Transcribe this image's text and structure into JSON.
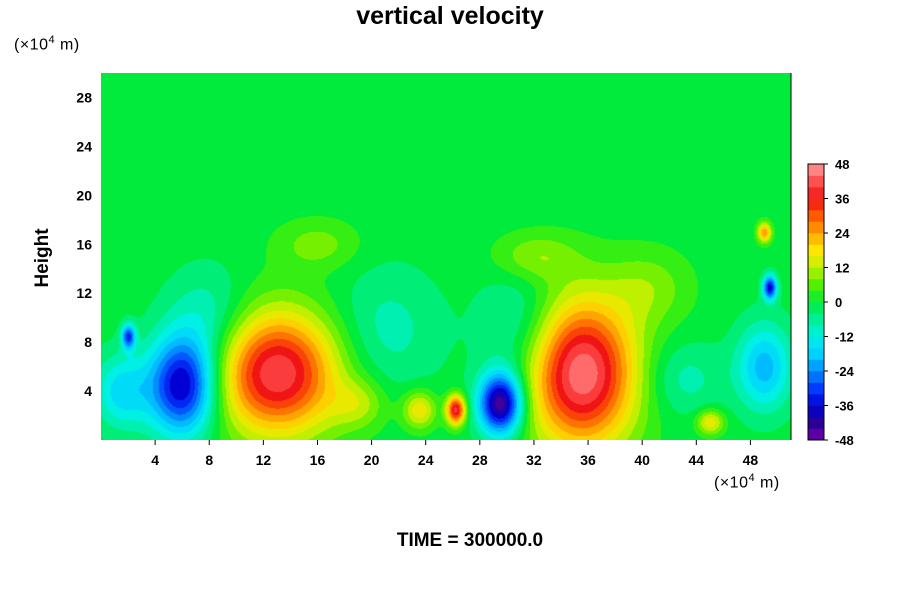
{
  "chart_data": {
    "type": "heatmap",
    "title": "vertical velocity",
    "ylabel": "Height",
    "xunit": {
      "prefix": "(×10",
      "exp": "4",
      "suffix": " m)"
    },
    "yunit": {
      "prefix": "(×10",
      "exp": "4",
      "suffix": " m)"
    },
    "xlim": [
      0,
      51
    ],
    "ylim": [
      0,
      30
    ],
    "xticks": [
      4,
      8,
      12,
      16,
      20,
      24,
      28,
      32,
      36,
      40,
      44,
      48
    ],
    "yticks": [
      4,
      8,
      12,
      16,
      20,
      24,
      28
    ],
    "colorbar": {
      "min": -48,
      "max": 48,
      "step": 4,
      "labels": [
        48,
        36,
        24,
        12,
        0,
        -12,
        -24,
        -36,
        -48
      ]
    },
    "background_value": 0,
    "features": [
      {
        "x": 13,
        "y": 5.5,
        "value": 42,
        "sx": 4.5,
        "sy": 5
      },
      {
        "x": 35.5,
        "y": 5.5,
        "value": 46,
        "sx": 4,
        "sy": 6
      },
      {
        "x": 26.2,
        "y": 2.5,
        "value": 40,
        "sx": 0.7,
        "sy": 1.2
      },
      {
        "x": 6,
        "y": 4.5,
        "value": -40,
        "sx": 2.5,
        "sy": 4
      },
      {
        "x": 29.5,
        "y": 3,
        "value": -46,
        "sx": 1.6,
        "sy": 2.5
      },
      {
        "x": 49,
        "y": 6,
        "value": -20,
        "sx": 2,
        "sy": 3.5
      },
      {
        "x": 49.4,
        "y": 12.5,
        "value": -36,
        "sx": 0.5,
        "sy": 1
      },
      {
        "x": 49,
        "y": 17,
        "value": 26,
        "sx": 0.5,
        "sy": 0.8
      },
      {
        "x": 1.5,
        "y": 4,
        "value": -16,
        "sx": 2,
        "sy": 3
      },
      {
        "x": 2,
        "y": 8.5,
        "value": -30,
        "sx": 0.5,
        "sy": 1
      },
      {
        "x": 8,
        "y": 10,
        "value": -10,
        "sx": 3,
        "sy": 4
      },
      {
        "x": 21,
        "y": 9,
        "value": -8,
        "sx": 4,
        "sy": 5
      },
      {
        "x": 31,
        "y": 9,
        "value": -10,
        "sx": 3,
        "sy": 5
      },
      {
        "x": 43,
        "y": 5,
        "value": -8,
        "sx": 3,
        "sy": 3
      },
      {
        "x": 23.5,
        "y": 2.5,
        "value": 18,
        "sx": 1.2,
        "sy": 1.5
      },
      {
        "x": 45,
        "y": 1.5,
        "value": 18,
        "sx": 1,
        "sy": 1
      },
      {
        "x": 19,
        "y": 3,
        "value": 10,
        "sx": 2,
        "sy": 2
      },
      {
        "x": 40.5,
        "y": 12.5,
        "value": 8,
        "sx": 3,
        "sy": 3
      },
      {
        "x": 32,
        "y": 15,
        "value": 10,
        "sx": 3,
        "sy": 2
      },
      {
        "x": 16,
        "y": 16,
        "value": 8,
        "sx": 3,
        "sy": 2
      }
    ]
  },
  "footer": {
    "time_label": "TIME = 300000.0"
  }
}
